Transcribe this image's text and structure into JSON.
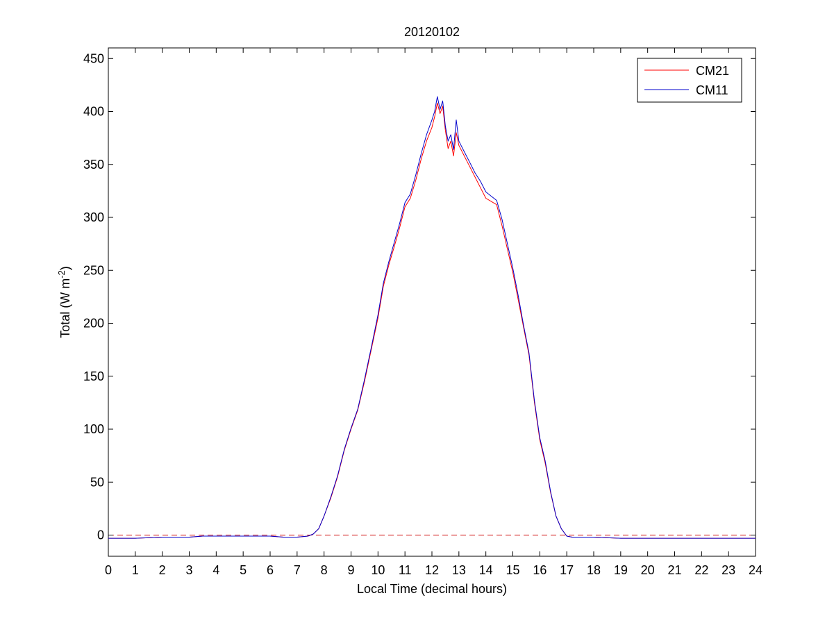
{
  "chart_data": {
    "type": "line",
    "title": "20120102",
    "xlabel": "Local Time (decimal hours)",
    "ylabel": "Total (W m",
    "ylabel_sup": "-2",
    "ylabel_close": ")",
    "xlim": [
      0,
      24
    ],
    "ylim": [
      -20,
      460
    ],
    "xticks": [
      0,
      1,
      2,
      3,
      4,
      5,
      6,
      7,
      8,
      9,
      10,
      11,
      12,
      13,
      14,
      15,
      16,
      17,
      18,
      19,
      20,
      21,
      22,
      23,
      24
    ],
    "yticks": [
      0,
      50,
      100,
      150,
      200,
      250,
      300,
      350,
      400,
      450
    ],
    "grid": false,
    "legend_position": "top-right",
    "reference_line": {
      "y": 0,
      "style": "dashed",
      "color": "#cc0000"
    },
    "series": [
      {
        "name": "CM21",
        "color": "#ff0000",
        "x": [
          0,
          1,
          2,
          3,
          3.5,
          4,
          5,
          6,
          6.5,
          7,
          7.4,
          7.6,
          7.8,
          8,
          8.25,
          8.5,
          8.75,
          9,
          9.25,
          9.5,
          9.75,
          10,
          10.2,
          10.4,
          10.6,
          10.8,
          11,
          11.2,
          11.4,
          11.6,
          11.8,
          12,
          12.1,
          12.2,
          12.3,
          12.4,
          12.5,
          12.6,
          12.7,
          12.8,
          12.9,
          13,
          13.2,
          13.4,
          13.6,
          13.8,
          14,
          14.2,
          14.4,
          14.6,
          14.8,
          15,
          15.2,
          15.4,
          15.6,
          15.8,
          16,
          16.2,
          16.4,
          16.6,
          16.8,
          17,
          17.2,
          17.5,
          18,
          19,
          20,
          21,
          22,
          23,
          24
        ],
        "y": [
          -3,
          -3,
          -2,
          -2,
          -1,
          -1,
          -1,
          -1,
          -2,
          -2,
          -1,
          1,
          6,
          18,
          35,
          55,
          80,
          100,
          118,
          145,
          175,
          205,
          235,
          255,
          272,
          290,
          310,
          318,
          335,
          355,
          372,
          385,
          395,
          408,
          398,
          405,
          382,
          365,
          372,
          358,
          380,
          368,
          358,
          348,
          338,
          328,
          318,
          315,
          312,
          292,
          270,
          248,
          222,
          196,
          170,
          125,
          90,
          68,
          40,
          18,
          6,
          -1,
          -2,
          -2,
          -2,
          -3,
          -3,
          -3,
          -3,
          -3,
          -3
        ]
      },
      {
        "name": "CM11",
        "color": "#0000cc",
        "x": [
          0,
          1,
          2,
          3,
          3.5,
          4,
          5,
          6,
          6.5,
          7,
          7.4,
          7.6,
          7.8,
          8,
          8.25,
          8.5,
          8.75,
          9,
          9.25,
          9.5,
          9.75,
          10,
          10.2,
          10.4,
          10.6,
          10.8,
          11,
          11.2,
          11.4,
          11.6,
          11.8,
          12,
          12.1,
          12.2,
          12.3,
          12.4,
          12.5,
          12.6,
          12.7,
          12.8,
          12.9,
          13,
          13.2,
          13.4,
          13.6,
          13.8,
          14,
          14.2,
          14.4,
          14.6,
          14.8,
          15,
          15.2,
          15.4,
          15.6,
          15.8,
          16,
          16.2,
          16.4,
          16.6,
          16.8,
          17,
          17.2,
          17.5,
          18,
          19,
          20,
          21,
          22,
          23,
          24
        ],
        "y": [
          -3,
          -3,
          -2,
          -2,
          -1,
          -1,
          -1,
          -1,
          -2,
          -2,
          -1,
          1,
          6,
          18,
          36,
          56,
          81,
          101,
          119,
          147,
          177,
          208,
          238,
          258,
          276,
          294,
          314,
          322,
          340,
          360,
          378,
          392,
          400,
          414,
          402,
          410,
          386,
          372,
          378,
          364,
          392,
          372,
          362,
          352,
          342,
          334,
          324,
          320,
          316,
          298,
          275,
          252,
          226,
          198,
          172,
          127,
          92,
          70,
          41,
          18,
          6,
          -1,
          -2,
          -2,
          -2,
          -3,
          -3,
          -3,
          -3,
          -3,
          -3
        ]
      }
    ]
  }
}
